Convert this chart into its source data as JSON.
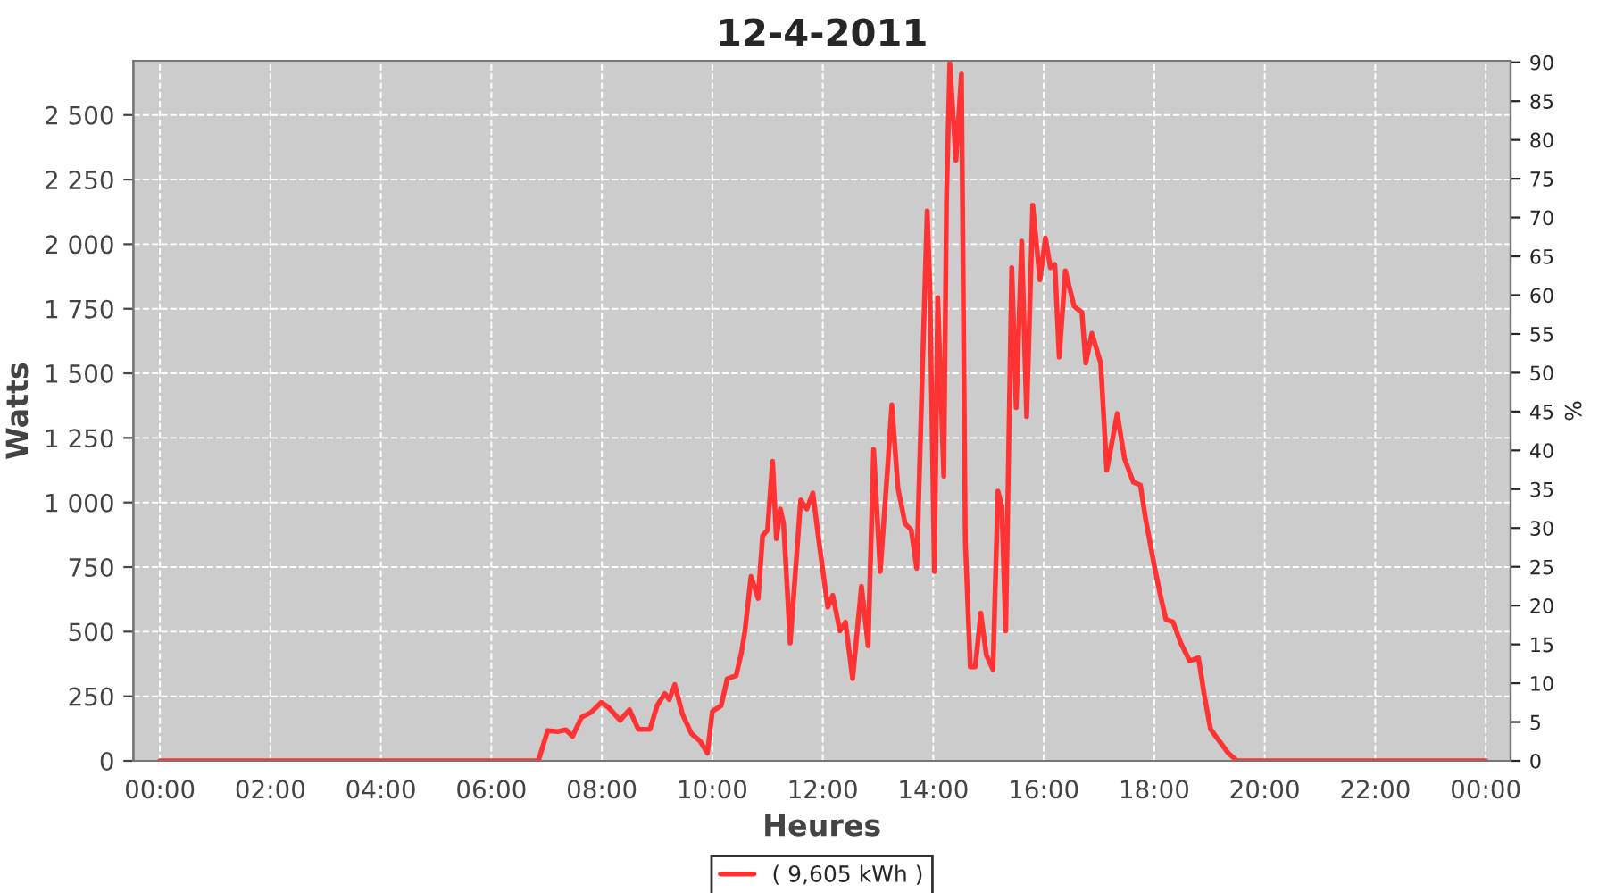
{
  "chart_data": {
    "type": "line",
    "title": "12-4-2011",
    "xlabel": "Heures",
    "ylabel": "Watts",
    "y2label": "%",
    "series": [
      {
        "name": "( 9,605 kWh )",
        "color": "#ff3333",
        "x": [
          0,
          6.85,
          7.02,
          7.2,
          7.35,
          7.47,
          7.63,
          7.8,
          7.99,
          8.12,
          8.33,
          8.5,
          8.66,
          8.87,
          9.0,
          9.14,
          9.22,
          9.32,
          9.46,
          9.62,
          9.78,
          9.91,
          10.0,
          10.16,
          10.27,
          10.43,
          10.53,
          10.59,
          10.7,
          10.83,
          10.91,
          11.0,
          11.09,
          11.16,
          11.23,
          11.29,
          11.41,
          11.6,
          11.71,
          11.82,
          11.93,
          12.09,
          12.18,
          12.31,
          12.41,
          12.54,
          12.7,
          12.82,
          12.92,
          13.04,
          13.17,
          13.25,
          13.36,
          13.49,
          13.6,
          13.7,
          13.81,
          13.89,
          13.94,
          14.02,
          14.08,
          14.19,
          14.24,
          14.3,
          14.41,
          14.51,
          14.58,
          14.67,
          14.76,
          14.86,
          14.96,
          15.08,
          15.17,
          15.24,
          15.31,
          15.42,
          15.5,
          15.6,
          15.69,
          15.8,
          15.93,
          16.03,
          16.12,
          16.2,
          16.28,
          16.39,
          16.55,
          16.69,
          16.76,
          16.87,
          17.03,
          17.14,
          17.33,
          17.46,
          17.62,
          17.75,
          17.84,
          18.0,
          18.11,
          18.21,
          18.34,
          18.48,
          18.64,
          18.8,
          18.91,
          19.02,
          19.18,
          19.34,
          19.5,
          24
        ],
        "values": [
          0,
          0,
          117,
          113,
          120,
          95,
          168,
          187,
          226,
          207,
          157,
          198,
          122,
          122,
          214,
          260,
          237,
          295,
          180,
          106,
          76,
          30,
          191,
          214,
          318,
          330,
          422,
          503,
          714,
          629,
          871,
          894,
          1160,
          860,
          975,
          918,
          456,
          1010,
          975,
          1037,
          849,
          595,
          641,
          503,
          537,
          318,
          676,
          445,
          1205,
          733,
          1125,
          1378,
          1056,
          918,
          894,
          745,
          1563,
          2128,
          1817,
          733,
          1793,
          1102,
          2185,
          2700,
          2324,
          2658,
          849,
          364,
          364,
          572,
          410,
          353,
          1044,
          987,
          503,
          1909,
          1367,
          2012,
          1333,
          2151,
          1862,
          2024,
          1909,
          1921,
          1563,
          1897,
          1759,
          1736,
          1540,
          1655,
          1540,
          1125,
          1344,
          1171,
          1079,
          1067,
          940,
          756,
          641,
          548,
          537,
          456,
          387,
          399,
          249,
          122,
          76,
          30,
          0,
          0
        ]
      }
    ],
    "xlim": [
      -0.48,
      24.45
    ],
    "xticks": [
      {
        "value": 0,
        "label": "00:00"
      },
      {
        "value": 2,
        "label": "02:00"
      },
      {
        "value": 4,
        "label": "04:00"
      },
      {
        "value": 6,
        "label": "06:00"
      },
      {
        "value": 8,
        "label": "08:00"
      },
      {
        "value": 10,
        "label": "10:00"
      },
      {
        "value": 12,
        "label": "12:00"
      },
      {
        "value": 14,
        "label": "14:00"
      },
      {
        "value": 16,
        "label": "16:00"
      },
      {
        "value": 18,
        "label": "18:00"
      },
      {
        "value": 20,
        "label": "20:00"
      },
      {
        "value": 22,
        "label": "22:00"
      },
      {
        "value": 24,
        "label": "00:00"
      }
    ],
    "ylim": [
      0,
      2710
    ],
    "yticks": [
      0,
      250,
      500,
      750,
      {
        "value": 1000,
        "label": "1 000"
      },
      {
        "value": 1250,
        "label": "1 250"
      },
      {
        "value": 1500,
        "label": "1 500"
      },
      {
        "value": 1750,
        "label": "1 750"
      },
      {
        "value": 2000,
        "label": "2 000"
      },
      {
        "value": 2250,
        "label": "2 250"
      },
      {
        "value": 2500,
        "label": "2 500"
      }
    ],
    "y2lim": [
      0,
      90.2
    ],
    "y2ticks": [
      0,
      5,
      10,
      15,
      20,
      25,
      30,
      35,
      40,
      45,
      50,
      55,
      60,
      65,
      70,
      75,
      80,
      85,
      90
    ],
    "grid": true,
    "legend": "bottom",
    "marker": "none",
    "line_style": "solid"
  }
}
